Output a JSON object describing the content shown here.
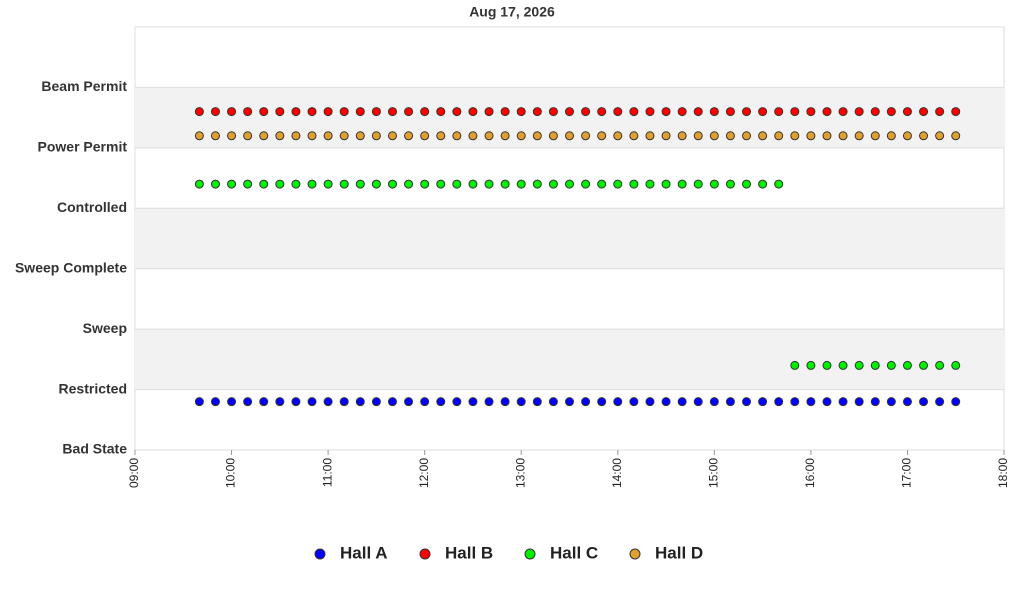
{
  "chart_data": {
    "type": "scatter",
    "title": "Aug 17, 2026",
    "x": [
      9.6667,
      9.8333,
      10,
      10.1667,
      10.3333,
      10.5,
      10.6667,
      10.8333,
      11,
      11.1667,
      11.3333,
      11.5,
      11.6667,
      11.8333,
      12,
      12.1667,
      12.3333,
      12.5,
      12.6667,
      12.8333,
      13,
      13.1667,
      13.3333,
      13.5,
      13.6667,
      13.8333,
      14,
      14.1667,
      14.3333,
      14.5,
      14.6667,
      14.8333,
      15,
      15.1667,
      15.3333,
      15.5,
      15.6667,
      15.8333,
      16,
      16.1667,
      16.3333,
      16.5,
      16.6667,
      16.8333,
      17,
      17.1667,
      17.3333,
      17.5
    ],
    "series": [
      {
        "name": "Hall A",
        "color": "#0000ff",
        "values": [
          0.8,
          0.8,
          0.8,
          0.8,
          0.8,
          0.8,
          0.8,
          0.8,
          0.8,
          0.8,
          0.8,
          0.8,
          0.8,
          0.8,
          0.8,
          0.8,
          0.8,
          0.8,
          0.8,
          0.8,
          0.8,
          0.8,
          0.8,
          0.8,
          0.8,
          0.8,
          0.8,
          0.8,
          0.8,
          0.8,
          0.8,
          0.8,
          0.8,
          0.8,
          0.8,
          0.8,
          0.8,
          0.8,
          0.8,
          0.8,
          0.8,
          0.8,
          0.8,
          0.8,
          0.8,
          0.8,
          0.8,
          0.8
        ]
      },
      {
        "name": "Hall B",
        "color": "#ff0000",
        "values": [
          5.6,
          5.6,
          5.6,
          5.6,
          5.6,
          5.6,
          5.6,
          5.6,
          5.6,
          5.6,
          5.6,
          5.6,
          5.6,
          5.6,
          5.6,
          5.6,
          5.6,
          5.6,
          5.6,
          5.6,
          5.6,
          5.6,
          5.6,
          5.6,
          5.6,
          5.6,
          5.6,
          5.6,
          5.6,
          5.6,
          5.6,
          5.6,
          5.6,
          5.6,
          5.6,
          5.6,
          5.6,
          5.6,
          5.6,
          5.6,
          5.6,
          5.6,
          5.6,
          5.6,
          5.6,
          5.6,
          5.6,
          5.6
        ]
      },
      {
        "name": "Hall C",
        "color": "#00ee00",
        "values": [
          4.4,
          4.4,
          4.4,
          4.4,
          4.4,
          4.4,
          4.4,
          4.4,
          4.4,
          4.4,
          4.4,
          4.4,
          4.4,
          4.4,
          4.4,
          4.4,
          4.4,
          4.4,
          4.4,
          4.4,
          4.4,
          4.4,
          4.4,
          4.4,
          4.4,
          4.4,
          4.4,
          4.4,
          4.4,
          4.4,
          4.4,
          4.4,
          4.4,
          4.4,
          4.4,
          4.4,
          4.4,
          1.4,
          1.4,
          1.4,
          1.4,
          1.4,
          1.4,
          1.4,
          1.4,
          1.4,
          1.4,
          1.4
        ]
      },
      {
        "name": "Hall D",
        "color": "#e0a030",
        "values": [
          5.2,
          5.2,
          5.2,
          5.2,
          5.2,
          5.2,
          5.2,
          5.2,
          5.2,
          5.2,
          5.2,
          5.2,
          5.2,
          5.2,
          5.2,
          5.2,
          5.2,
          5.2,
          5.2,
          5.2,
          5.2,
          5.2,
          5.2,
          5.2,
          5.2,
          5.2,
          5.2,
          5.2,
          5.2,
          5.2,
          5.2,
          5.2,
          5.2,
          5.2,
          5.2,
          5.2,
          5.2,
          5.2,
          5.2,
          5.2,
          5.2,
          5.2,
          5.2,
          5.2,
          5.2,
          5.2,
          5.2,
          5.2
        ]
      }
    ],
    "xlim": [
      9,
      18
    ],
    "xticks": [
      {
        "value": 9,
        "label": "09:00"
      },
      {
        "value": 10,
        "label": "10:00"
      },
      {
        "value": 11,
        "label": "11:00"
      },
      {
        "value": 12,
        "label": "12:00"
      },
      {
        "value": 13,
        "label": "13:00"
      },
      {
        "value": 14,
        "label": "14:00"
      },
      {
        "value": 15,
        "label": "15:00"
      },
      {
        "value": 16,
        "label": "16:00"
      },
      {
        "value": 17,
        "label": "17:00"
      },
      {
        "value": 18,
        "label": "18:00"
      }
    ],
    "ylim": [
      0,
      7
    ],
    "yticks": [
      {
        "value": 0,
        "label": "Bad State"
      },
      {
        "value": 1,
        "label": "Restricted"
      },
      {
        "value": 2,
        "label": "Sweep"
      },
      {
        "value": 3,
        "label": "Sweep Complete"
      },
      {
        "value": 4,
        "label": "Controlled"
      },
      {
        "value": 5,
        "label": "Power Permit"
      },
      {
        "value": 6,
        "label": "Beam Permit"
      }
    ],
    "grid": true,
    "legend": "bottom"
  }
}
